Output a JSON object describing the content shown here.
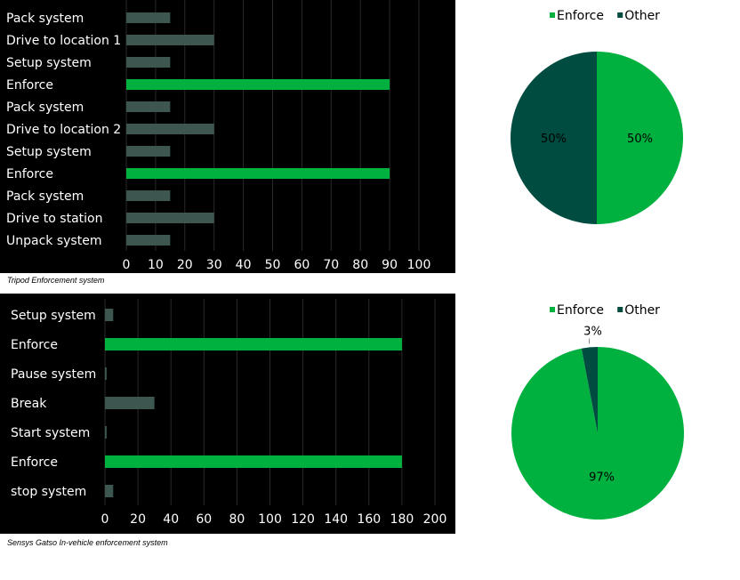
{
  "colors": {
    "enforce": "#00b140",
    "other": "#3d5750",
    "pie_other": "#004c40",
    "background": "#000000",
    "grid": "#2a2a2a"
  },
  "chart_data": [
    {
      "type": "bar",
      "orientation": "horizontal",
      "caption": "Tripod Enforcement system",
      "categories": [
        "Pack system",
        "Drive to location 1",
        "Setup system",
        "Enforce",
        "Pack system",
        "Drive to location 2",
        "Setup system",
        "Enforce",
        "Pack system",
        "Drive to station",
        "Unpack system"
      ],
      "values": [
        15,
        30,
        15,
        90,
        15,
        30,
        15,
        90,
        15,
        30,
        15
      ],
      "highlight": [
        "Enforce"
      ],
      "xlim": [
        0,
        100
      ],
      "xticks": [
        0,
        10,
        20,
        30,
        40,
        50,
        60,
        70,
        80,
        90,
        100
      ],
      "grid": true
    },
    {
      "type": "pie",
      "legend": [
        "Enforce",
        "Other"
      ],
      "legend_position": "top",
      "slices": [
        {
          "label": "Enforce",
          "value": 50,
          "text": "50%"
        },
        {
          "label": "Other",
          "value": 50,
          "text": "50%"
        }
      ]
    },
    {
      "type": "bar",
      "orientation": "horizontal",
      "caption": "Sensys Gatso In-vehicle enforcement system",
      "categories": [
        "Setup system",
        "Enforce",
        "Pause system",
        "Break",
        "Start system",
        "Enforce",
        "stop system"
      ],
      "values": [
        5,
        180,
        1,
        30,
        1,
        180,
        5
      ],
      "highlight": [
        "Enforce"
      ],
      "xlim": [
        0,
        200
      ],
      "xticks": [
        0,
        20,
        40,
        60,
        80,
        100,
        120,
        140,
        160,
        180,
        200
      ],
      "grid": true
    },
    {
      "type": "pie",
      "legend": [
        "Enforce",
        "Other"
      ],
      "legend_position": "top",
      "slices": [
        {
          "label": "Enforce",
          "value": 97,
          "text": "97%"
        },
        {
          "label": "Other",
          "value": 3,
          "text": "3%"
        }
      ]
    }
  ]
}
